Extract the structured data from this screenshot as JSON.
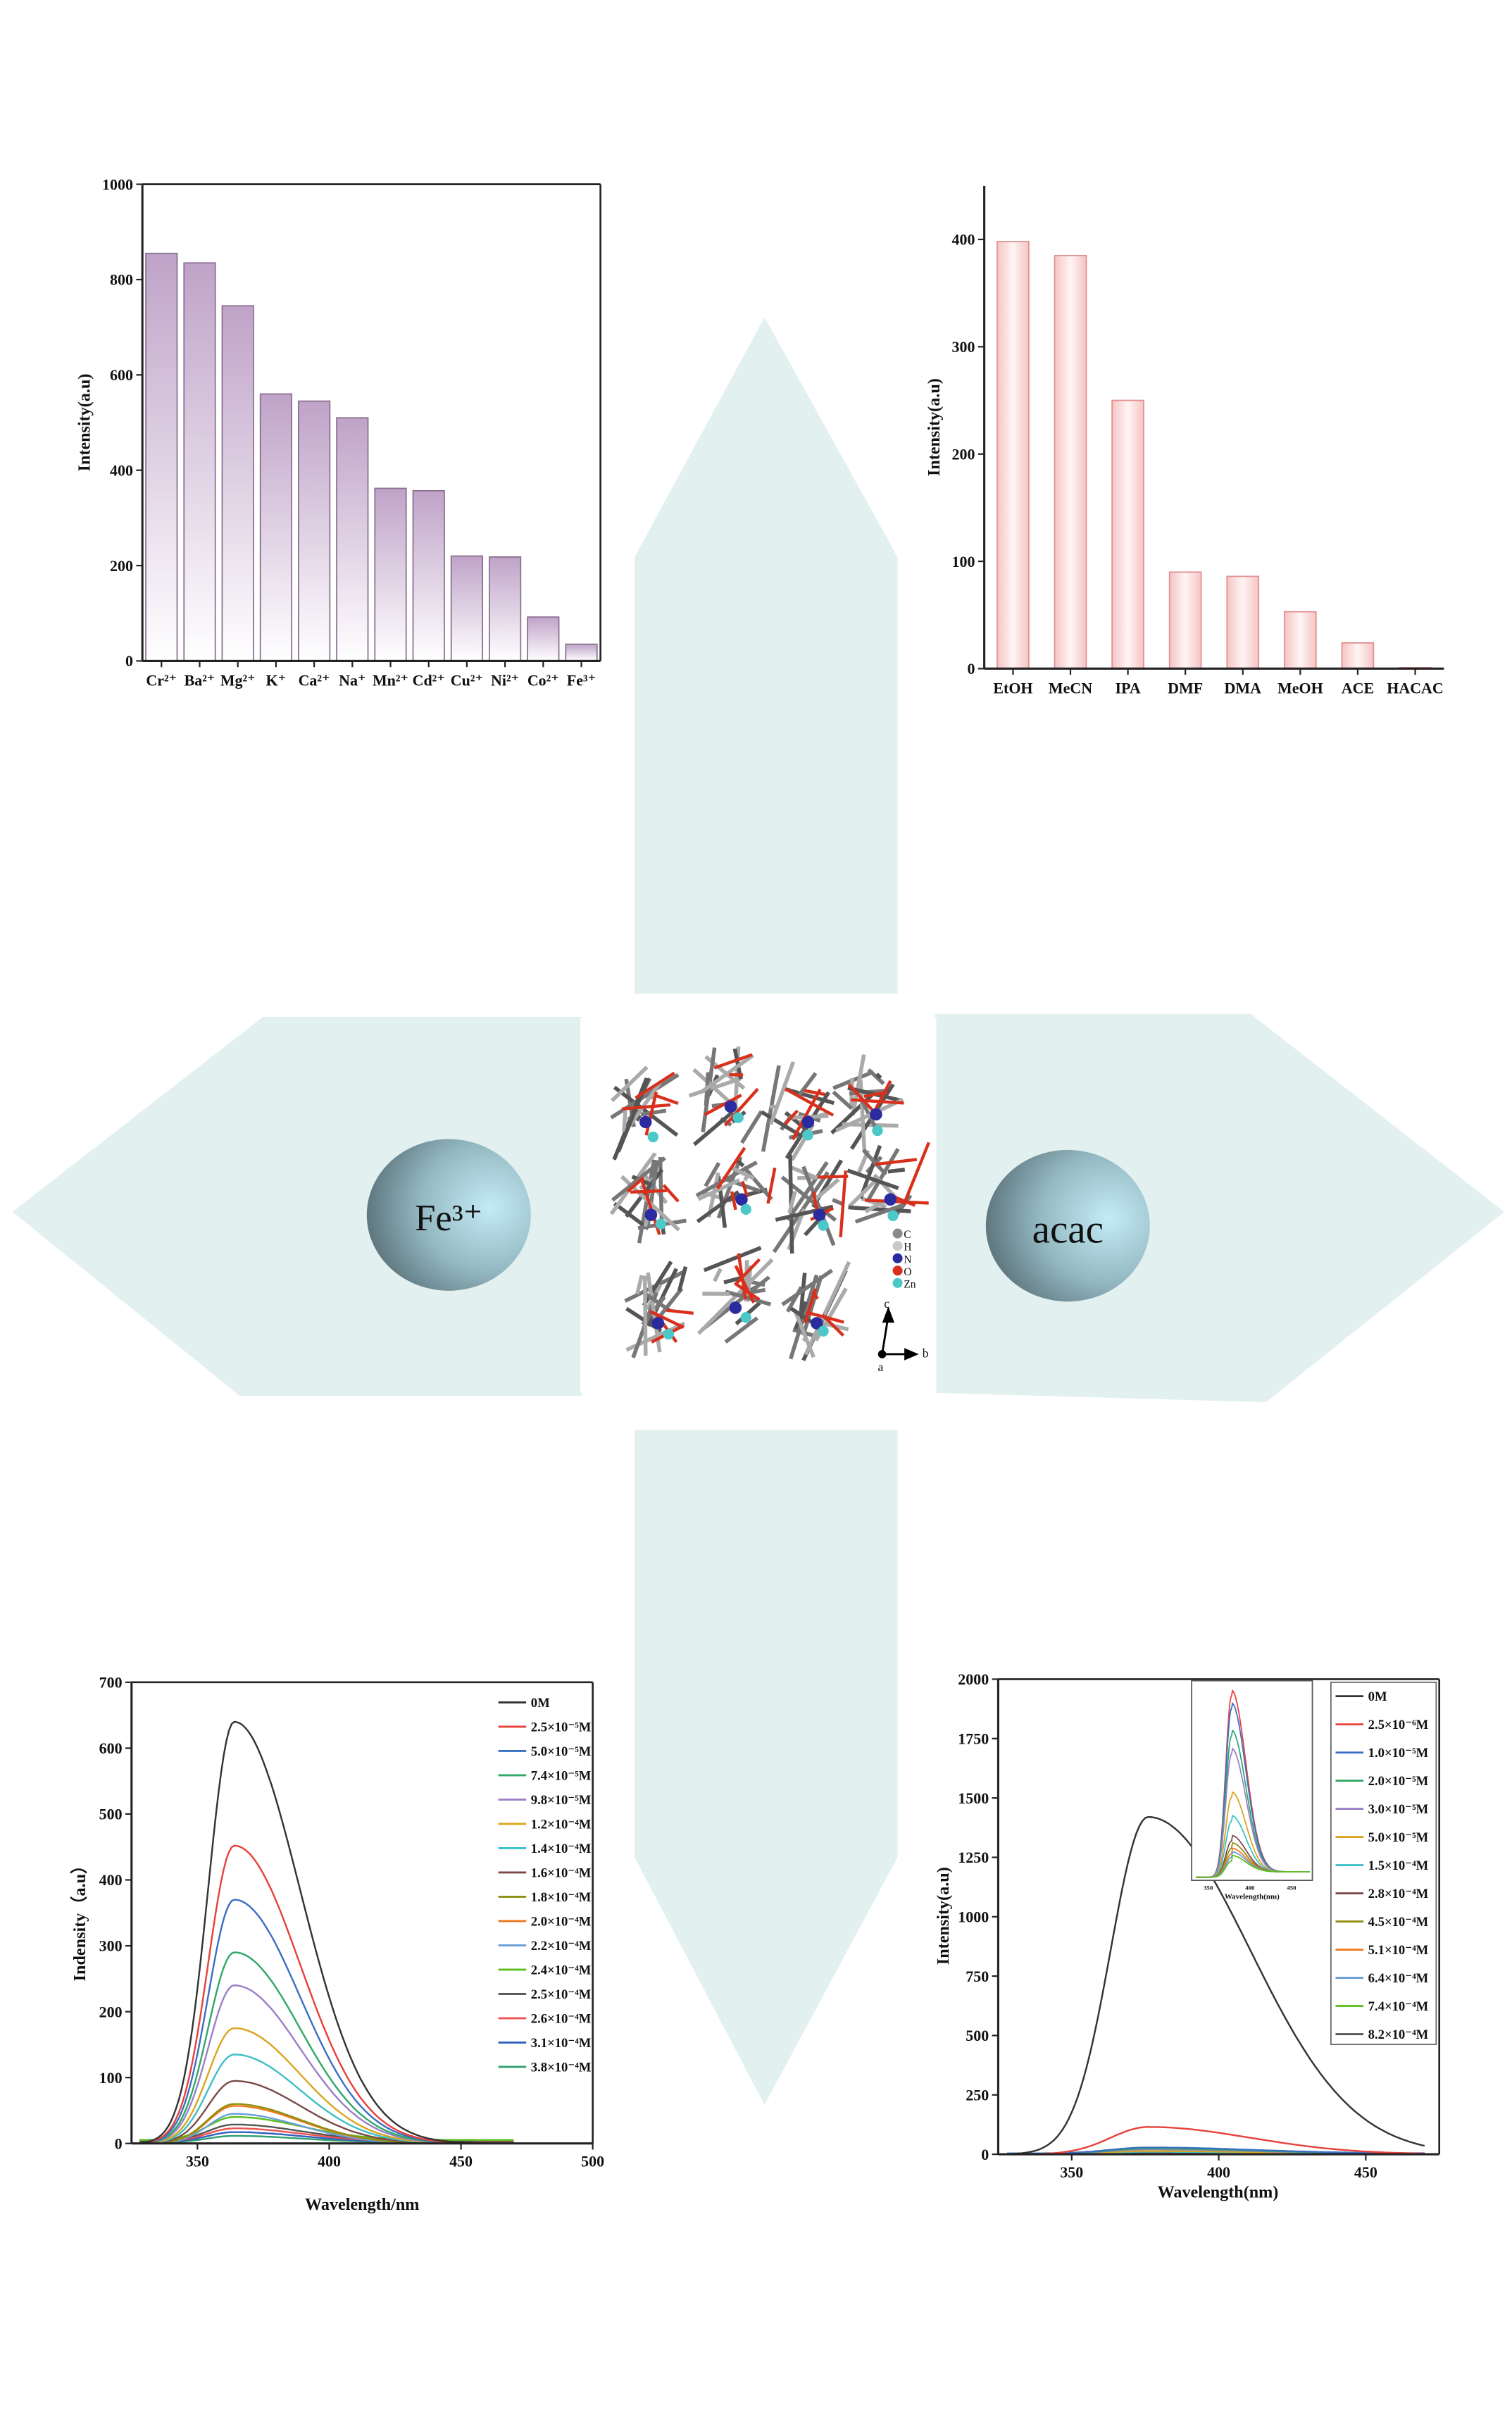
{
  "colors": {
    "arrow": "#e3f0f0",
    "bar_top_left": "#bfa3c8",
    "bar_top_right": "#f4bcbc",
    "circle_dark": "#5a7078",
    "circle_light": "#bfe6f2"
  },
  "center": {
    "left_label": "Fe³⁺",
    "right_label": "acac",
    "atom_legend": [
      {
        "label": "C",
        "color": "#8a8a8a"
      },
      {
        "label": "H",
        "color": "#c8c8c8"
      },
      {
        "label": "N",
        "color": "#2b2ba0"
      },
      {
        "label": "O",
        "color": "#d8301c"
      },
      {
        "label": "Zn",
        "color": "#4cc8c8"
      }
    ],
    "axes": {
      "c": "c",
      "a": "a",
      "b": "b"
    }
  },
  "chart_data": [
    {
      "id": "metal-ions",
      "type": "bar",
      "title": "",
      "xlabel": "",
      "ylabel": "Intensity(a.u)",
      "ylim": [
        0,
        1000
      ],
      "yticks": [
        0,
        200,
        400,
        600,
        800,
        1000
      ],
      "categories": [
        "Cr²⁺",
        "Ba²⁺",
        "Mg²⁺",
        "K⁺",
        "Ca²⁺",
        "Na⁺",
        "Mn²⁺",
        "Cd²⁺",
        "Cu²⁺",
        "Ni²⁺",
        "Co²⁺",
        "Fe³⁺"
      ],
      "values": [
        855,
        835,
        745,
        560,
        545,
        510,
        362,
        357,
        220,
        218,
        92,
        35
      ]
    },
    {
      "id": "solvents",
      "type": "bar",
      "title": "",
      "xlabel": "",
      "ylabel": "Intensity(a.u)",
      "ylim": [
        0,
        450
      ],
      "yticks": [
        0,
        100,
        200,
        300,
        400
      ],
      "categories": [
        "EtOH",
        "MeCN",
        "IPA",
        "DMF",
        "DMA",
        "MeOH",
        "ACE",
        "HACAC"
      ],
      "values": [
        398,
        385,
        250,
        90,
        86,
        53,
        24,
        1
      ]
    },
    {
      "id": "fe-titration",
      "type": "line",
      "xlabel": "Wavelength/nm",
      "ylabel": "Indensity（a.u）",
      "xlim": [
        325,
        500
      ],
      "ylim": [
        0,
        700
      ],
      "xticks": [
        350,
        400,
        450,
        500
      ],
      "yticks": [
        0,
        100,
        200,
        300,
        400,
        500,
        600,
        700
      ],
      "legend": "top-right",
      "peak_wavelength": 364,
      "series": [
        {
          "name": "0M",
          "color": "#333333",
          "peak": 640
        },
        {
          "name": "2.5×10⁻⁵M",
          "color": "#e8413c",
          "peak": 452
        },
        {
          "name": "5.0×10⁻⁵M",
          "color": "#3b6fc4",
          "peak": 370
        },
        {
          "name": "7.4×10⁻⁵M",
          "color": "#2fa866",
          "peak": 290
        },
        {
          "name": "9.8×10⁻⁵M",
          "color": "#9b7fc8",
          "peak": 240
        },
        {
          "name": "1.2×10⁻⁴M",
          "color": "#d9a520",
          "peak": 175
        },
        {
          "name": "1.4×10⁻⁴M",
          "color": "#3cbfc8",
          "peak": 135
        },
        {
          "name": "1.6×10⁻⁴M",
          "color": "#7a4a48",
          "peak": 95
        },
        {
          "name": "1.8×10⁻⁴M",
          "color": "#8f8f10",
          "peak": 60
        },
        {
          "name": "2.0×10⁻⁴M",
          "color": "#f07820",
          "peak": 57
        },
        {
          "name": "2.2×10⁻⁴M",
          "color": "#6a9fd8",
          "peak": 45
        },
        {
          "name": "2.4×10⁻⁴M",
          "color": "#5cbf1c",
          "peak": 35
        },
        {
          "name": "2.5×10⁻⁴M",
          "color": "#555555",
          "peak": 25
        },
        {
          "name": "2.6×10⁻⁴M",
          "color": "#f05050",
          "peak": 20
        },
        {
          "name": "3.1×10⁻⁴M",
          "color": "#3060c0",
          "peak": 15
        },
        {
          "name": "3.8×10⁻⁴M",
          "color": "#30a070",
          "peak": 10
        }
      ]
    },
    {
      "id": "acac-titration",
      "type": "line",
      "xlabel": "Wavelength(nm)",
      "ylabel": "Intensity(a.u)",
      "xlim": [
        325,
        475
      ],
      "ylim": [
        0,
        2000
      ],
      "xticks": [
        350,
        400,
        450
      ],
      "yticks": [
        0,
        250,
        500,
        750,
        1000,
        1250,
        1500,
        1750,
        2000
      ],
      "legend": "top-right",
      "peak_wavelength": 376,
      "series": [
        {
          "name": "0M",
          "color": "#333333",
          "peak": 1420
        },
        {
          "name": "2.5×10⁻⁶M",
          "color": "#e8413c",
          "peak": 115
        },
        {
          "name": "1.0×10⁻⁵M",
          "color": "#3b6fc4",
          "peak": 25
        },
        {
          "name": "2.0×10⁻⁵M",
          "color": "#2fa866",
          "peak": 21
        },
        {
          "name": "3.0×10⁻⁵M",
          "color": "#9b7fc8",
          "peak": 18
        },
        {
          "name": "5.0×10⁻⁵M",
          "color": "#d9a520",
          "peak": 12
        },
        {
          "name": "1.5×10⁻⁴M",
          "color": "#3cbfc8",
          "peak": 9
        },
        {
          "name": "2.8×10⁻⁴M",
          "color": "#7a4a48",
          "peak": 6
        },
        {
          "name": "4.5×10⁻⁴M",
          "color": "#8f8f10",
          "peak": 5
        },
        {
          "name": "5.1×10⁻⁴M",
          "color": "#f07820",
          "peak": 4
        },
        {
          "name": "6.4×10⁻⁴M",
          "color": "#6a9fd8",
          "peak": 3
        },
        {
          "name": "7.4×10⁻⁴M",
          "color": "#5cbf1c",
          "peak": 3
        },
        {
          "name": "8.2×10⁻⁴M",
          "color": "#555555",
          "peak": 2
        }
      ],
      "inset": {
        "xlabel": "Wavelength(nm)",
        "xticks": [
          350,
          400,
          450
        ],
        "xlim": [
          330,
          475
        ],
        "peak_wavelength": 378,
        "relative_peaks": [
          100,
          93,
          78,
          68,
          44,
          31,
          20,
          16,
          13,
          11,
          9
        ]
      }
    }
  ]
}
